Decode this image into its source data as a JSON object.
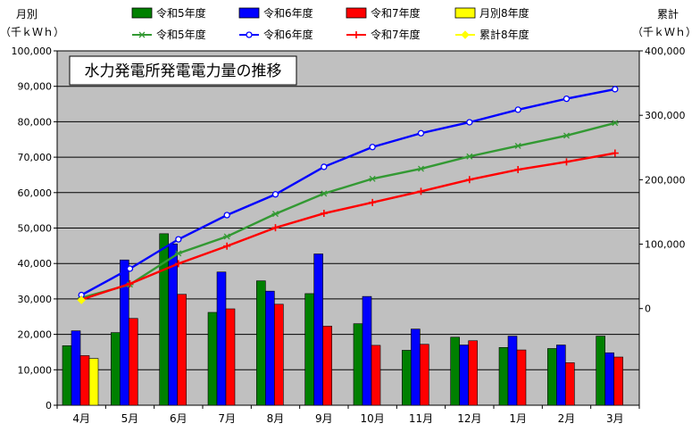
{
  "chart_data": {
    "type": "bar",
    "title": "水力発電所発電電力量の推移",
    "left_axis": {
      "label_top": "月別",
      "label_unit": "（千ｋＷｈ）",
      "ylim": [
        0,
        100000
      ],
      "ticks": [
        "0",
        "10,000",
        "20,000",
        "30,000",
        "40,000",
        "50,000",
        "60,000",
        "70,000",
        "80,000",
        "90,000",
        "100,000"
      ]
    },
    "right_axis": {
      "label_top": "累計",
      "label_unit": "（千ｋＷｈ）",
      "ylim": [
        -150000,
        400000
      ],
      "ticks": [
        "0",
        "100,000",
        "200,000",
        "300,000",
        "400,000"
      ]
    },
    "categories": [
      "4月",
      "5月",
      "6月",
      "7月",
      "8月",
      "9月",
      "10月",
      "11月",
      "12月",
      "1月",
      "2月",
      "3月"
    ],
    "grid": true,
    "legend_position": "top",
    "bar_series": [
      {
        "name": "令和5年度",
        "color": "#008000",
        "values": [
          16800,
          20500,
          48400,
          26200,
          35100,
          31500,
          23000,
          15500,
          19200,
          16300,
          16000,
          19500
        ]
      },
      {
        "name": "令和6年度",
        "color": "#0000ff",
        "values": [
          21000,
          41000,
          45500,
          37600,
          32200,
          42700,
          30700,
          21500,
          17000,
          19500,
          17000,
          14800
        ]
      },
      {
        "name": "令和7年度",
        "color": "#ff0000",
        "values": [
          14000,
          24500,
          31300,
          27200,
          28500,
          22300,
          16900,
          17200,
          18200,
          15600,
          12000,
          13600
        ]
      },
      {
        "name": "月別8年度",
        "color": "#ffff00",
        "values": [
          13200,
          null,
          null,
          null,
          null,
          null,
          null,
          null,
          null,
          null,
          null,
          null
        ]
      }
    ],
    "line_series": [
      {
        "name": "令和5年度",
        "color": "#339933",
        "marker": "star",
        "values": [
          16800,
          37300,
          85700,
          111900,
          147000,
          178500,
          201500,
          217000,
          236200,
          252500,
          268500,
          288000
        ]
      },
      {
        "name": "令和6年度",
        "color": "#0000ff",
        "marker": "circle",
        "values": [
          21000,
          62000,
          107500,
          145100,
          177300,
          220000,
          250700,
          272200,
          289200,
          308700,
          325700,
          340500
        ]
      },
      {
        "name": "令和7年度",
        "color": "#ff0000",
        "marker": "plus",
        "values": [
          14000,
          38500,
          69800,
          97000,
          125500,
          147800,
          164700,
          181900,
          200100,
          215700,
          227700,
          241300
        ]
      },
      {
        "name": "累計8年度",
        "color": "#ffff00",
        "marker": "diamond",
        "values": [
          13200,
          null,
          null,
          null,
          null,
          null,
          null,
          null,
          null,
          null,
          null,
          null
        ]
      }
    ]
  }
}
